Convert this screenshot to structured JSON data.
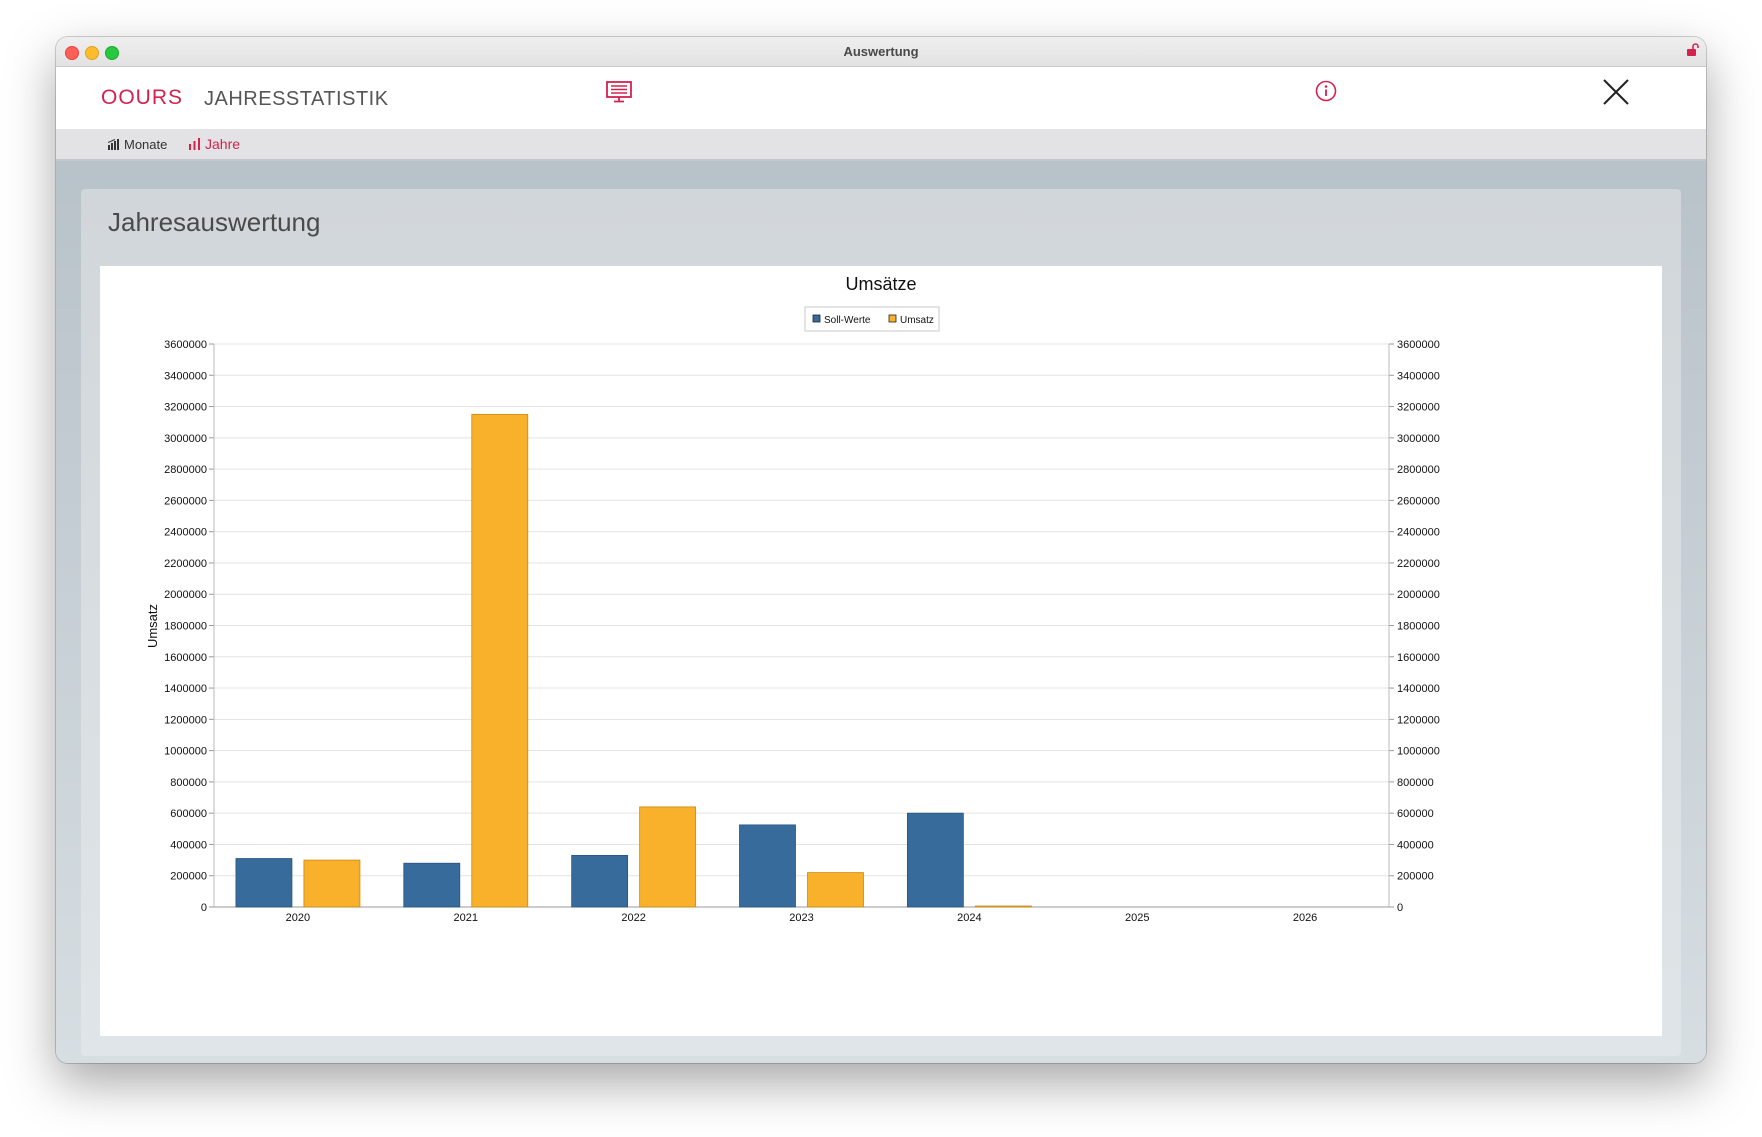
{
  "window": {
    "title": "Auswertung"
  },
  "header": {
    "logo": "OOURS",
    "app_title": "JAHRESSTATISTIK"
  },
  "nav": {
    "items": [
      {
        "label": "Monate",
        "active": false
      },
      {
        "label": "Jahre",
        "active": true
      }
    ]
  },
  "panel": {
    "title": "Jahresauswertung"
  },
  "colors": {
    "accent": "#d4224f",
    "soll": "#366b9c",
    "umsatz": "#f9b02a"
  },
  "chart_data": {
    "type": "bar",
    "title": "Umsätze",
    "ylabel": "Umsatz",
    "xlabel": "",
    "categories": [
      "2020",
      "2021",
      "2022",
      "2023",
      "2024",
      "2025",
      "2026"
    ],
    "series": [
      {
        "name": "Soll-Werte",
        "color": "#366b9c",
        "values": [
          310000,
          280000,
          330000,
          525000,
          600000,
          0,
          0
        ]
      },
      {
        "name": "Umsatz",
        "color": "#f9b02a",
        "values": [
          300000,
          3150000,
          640000,
          220000,
          5000,
          0,
          0
        ]
      }
    ],
    "ylim": [
      0,
      3600000
    ],
    "ystep": 200000,
    "yticks": [
      "0",
      "200000",
      "400000",
      "600000",
      "800000",
      "1000000",
      "1200000",
      "1400000",
      "1600000",
      "1800000",
      "2000000",
      "2200000",
      "2400000",
      "2600000",
      "2800000",
      "3000000",
      "3200000",
      "3400000",
      "3600000"
    ],
    "grid": true,
    "legend": "top-center",
    "secondary_axis": true
  }
}
